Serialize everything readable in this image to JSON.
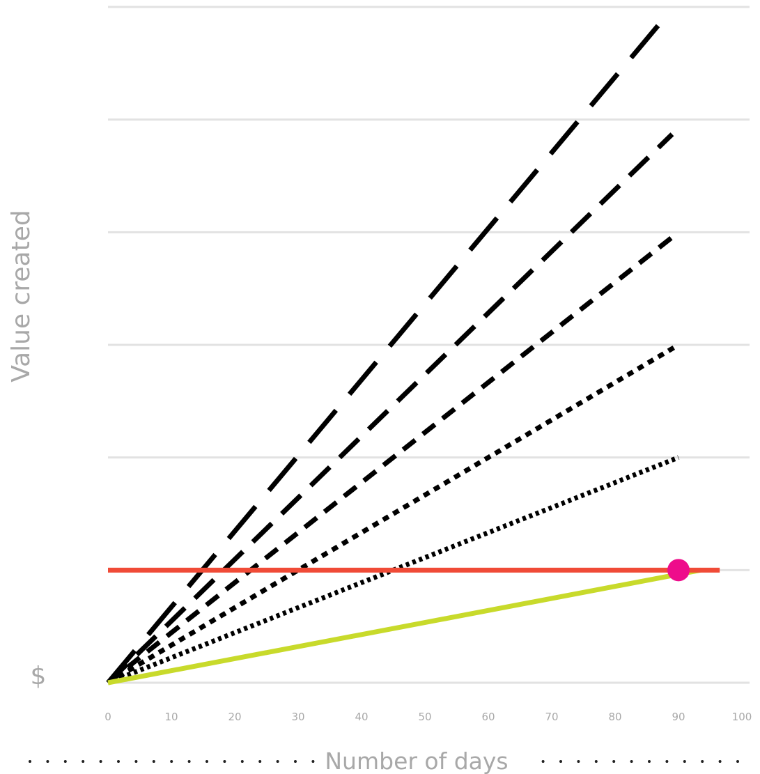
{
  "chart_data": {
    "type": "line",
    "xlabel": "Number of days",
    "ylabel": "Value created",
    "y_origin_label": "$",
    "xlim": [
      0,
      100
    ],
    "x_ticks": [
      "0",
      "10",
      "20",
      "30",
      "40",
      "50",
      "60",
      "70",
      "80",
      "90",
      "100"
    ],
    "ylim": [
      0,
      6
    ],
    "y_gridlines": [
      0,
      1,
      2,
      3,
      4,
      5,
      6
    ],
    "grid": true,
    "legend": "none",
    "series": [
      {
        "style": "long-dash",
        "color": "#000000",
        "x": [
          0,
          87
        ],
        "y": [
          0,
          5.85
        ]
      },
      {
        "style": "dash",
        "color": "#000000",
        "x": [
          0,
          89
        ],
        "y": [
          0,
          4.87
        ]
      },
      {
        "style": "short-dash",
        "color": "#000000",
        "x": [
          0,
          90
        ],
        "y": [
          0,
          4.0
        ]
      },
      {
        "style": "dotted",
        "color": "#000000",
        "x": [
          0,
          90
        ],
        "y": [
          0,
          3.0
        ]
      },
      {
        "style": "fine-dotted",
        "color": "#000000",
        "x": [
          0,
          90
        ],
        "y": [
          0,
          2.0
        ]
      },
      {
        "style": "solid",
        "color": "#c8da2b",
        "x": [
          0,
          93.5
        ],
        "y": [
          0,
          1.0
        ]
      },
      {
        "style": "solid",
        "color": "#f04b37",
        "x": [
          0,
          96.5
        ],
        "y": [
          1.0,
          1.0
        ]
      }
    ],
    "highlight_point": {
      "x": 90,
      "y": 1.0,
      "color": "#ee0c8b"
    }
  }
}
